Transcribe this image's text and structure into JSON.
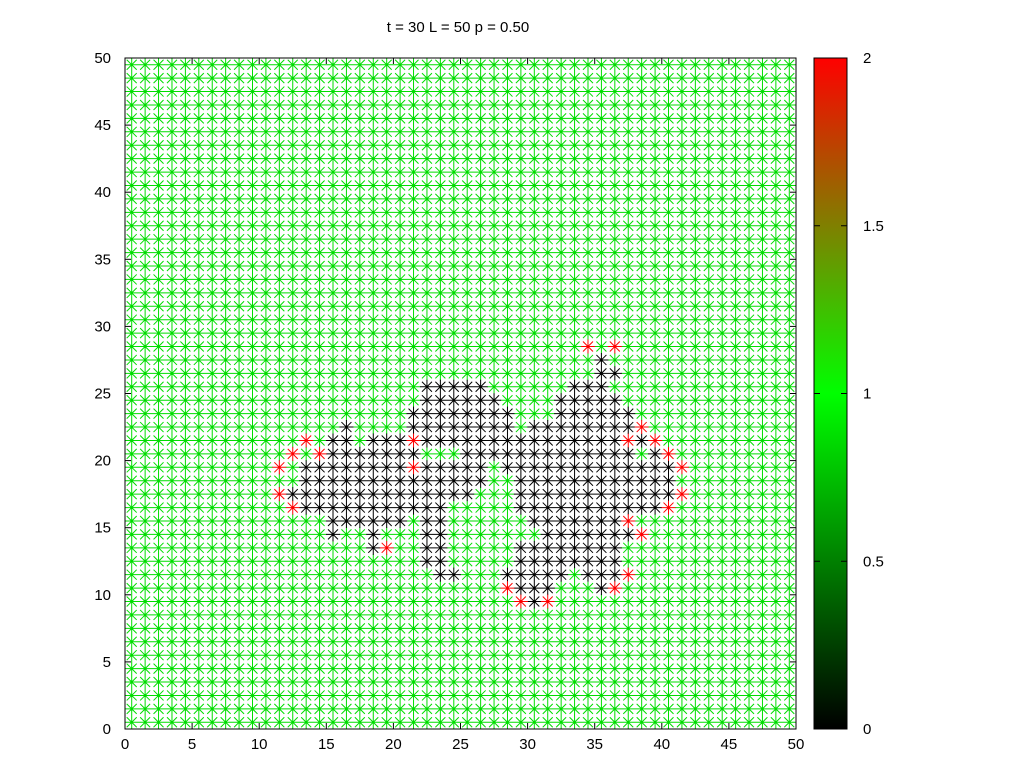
{
  "chart_data": {
    "type": "scatter",
    "title": "t = 30 L = 50 p = 0.50",
    "xlabel": "",
    "ylabel": "",
    "xlim": [
      0,
      50
    ],
    "ylim": [
      0,
      50
    ],
    "x_ticks": [
      "0",
      "5",
      "10",
      "15",
      "20",
      "25",
      "30",
      "35",
      "40",
      "45",
      "50"
    ],
    "y_ticks": [
      "0",
      "5",
      "10",
      "15",
      "20",
      "25",
      "30",
      "35",
      "40",
      "45",
      "50"
    ],
    "grid_size": 50,
    "marker": "asterisk",
    "grid": false,
    "colorbar": {
      "range": [
        0,
        2
      ],
      "ticks": [
        "0",
        "0.5",
        "1",
        "1.5",
        "2"
      ],
      "stops": [
        {
          "value": 0,
          "color": "#000000"
        },
        {
          "value": 1,
          "color": "#00ff00"
        },
        {
          "value": 2,
          "color": "#ff0000"
        }
      ]
    },
    "state_colors": {
      "0": "#000000",
      "1": "#00dd00",
      "2": "#ff0000"
    },
    "default_state": 1,
    "state_2_points": [
      [
        34,
        28
      ],
      [
        36,
        28
      ],
      [
        13,
        21
      ],
      [
        21,
        21
      ],
      [
        37,
        21
      ],
      [
        39,
        21
      ],
      [
        12,
        20
      ],
      [
        14,
        20
      ],
      [
        38,
        22
      ],
      [
        40,
        20
      ],
      [
        11,
        19
      ],
      [
        21,
        19
      ],
      [
        41,
        19
      ],
      [
        11,
        17
      ],
      [
        41,
        17
      ],
      [
        12,
        16
      ],
      [
        40,
        16
      ],
      [
        19,
        13
      ],
      [
        37,
        15
      ],
      [
        38,
        14
      ],
      [
        37,
        11
      ],
      [
        28,
        10
      ],
      [
        36,
        10
      ],
      [
        29,
        9
      ],
      [
        31,
        9
      ]
    ],
    "state_0_rows": [
      {
        "y": 27,
        "spans": [
          [
            35,
            35
          ]
        ]
      },
      {
        "y": 26,
        "spans": [
          [
            35,
            36
          ]
        ]
      },
      {
        "y": 25,
        "spans": [
          [
            22,
            26
          ],
          [
            33,
            35
          ]
        ]
      },
      {
        "y": 24,
        "spans": [
          [
            22,
            27
          ],
          [
            32,
            36
          ]
        ]
      },
      {
        "y": 23,
        "spans": [
          [
            21,
            28
          ],
          [
            32,
            37
          ]
        ]
      },
      {
        "y": 22,
        "spans": [
          [
            16,
            16
          ],
          [
            21,
            28
          ],
          [
            30,
            37
          ]
        ]
      },
      {
        "y": 21,
        "spans": [
          [
            15,
            16
          ],
          [
            18,
            20
          ],
          [
            22,
            38
          ]
        ]
      },
      {
        "y": 20,
        "spans": [
          [
            15,
            21
          ],
          [
            25,
            37
          ],
          [
            39,
            39
          ]
        ]
      },
      {
        "y": 19,
        "spans": [
          [
            13,
            20
          ],
          [
            22,
            26
          ],
          [
            28,
            40
          ]
        ]
      },
      {
        "y": 18,
        "spans": [
          [
            13,
            26
          ],
          [
            29,
            40
          ]
        ]
      },
      {
        "y": 17,
        "spans": [
          [
            12,
            25
          ],
          [
            29,
            40
          ]
        ]
      },
      {
        "y": 16,
        "spans": [
          [
            13,
            23
          ],
          [
            29,
            39
          ]
        ]
      },
      {
        "y": 15,
        "spans": [
          [
            15,
            20
          ],
          [
            22,
            23
          ],
          [
            30,
            36
          ]
        ]
      },
      {
        "y": 14,
        "spans": [
          [
            15,
            15
          ],
          [
            18,
            18
          ],
          [
            22,
            23
          ],
          [
            31,
            37
          ]
        ]
      },
      {
        "y": 13,
        "spans": [
          [
            18,
            18
          ],
          [
            22,
            23
          ],
          [
            29,
            36
          ]
        ]
      },
      {
        "y": 12,
        "spans": [
          [
            22,
            23
          ],
          [
            29,
            36
          ]
        ]
      },
      {
        "y": 11,
        "spans": [
          [
            23,
            24
          ],
          [
            28,
            32
          ],
          [
            34,
            36
          ]
        ]
      },
      {
        "y": 10,
        "spans": [
          [
            29,
            31
          ],
          [
            35,
            35
          ]
        ]
      },
      {
        "y": 9,
        "spans": [
          [
            30,
            30
          ]
        ]
      }
    ]
  }
}
